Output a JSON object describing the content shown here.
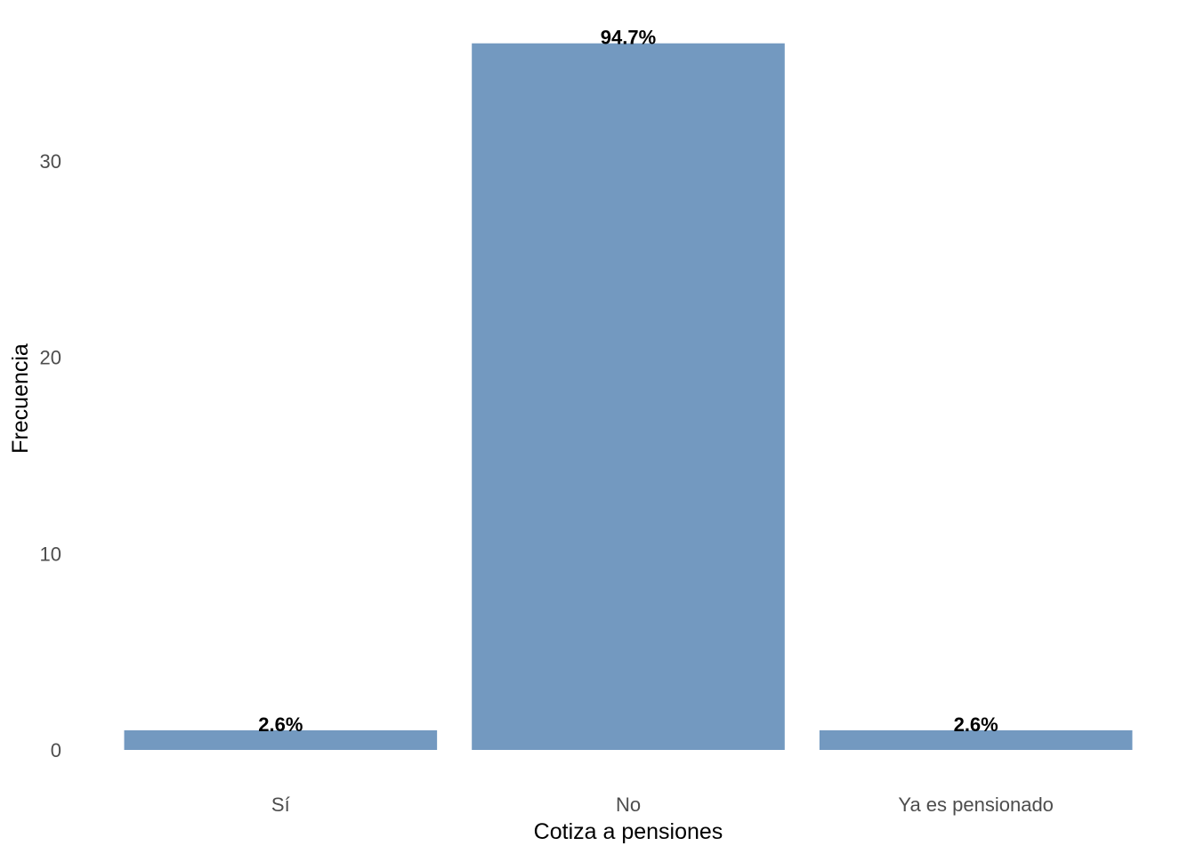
{
  "chart_data": {
    "type": "bar",
    "title": "",
    "xlabel": "Cotiza a pensiones",
    "ylabel": "Frecuencia",
    "categories": [
      "Sí",
      "No",
      "Ya es pensionado"
    ],
    "values": [
      1,
      36,
      1
    ],
    "data_labels": [
      "2.6%",
      "94.7%",
      "2.6%"
    ],
    "yticks": [
      0,
      10,
      20,
      30
    ],
    "ytick_labels": [
      "0",
      "10",
      "20",
      "30"
    ],
    "ylim": [
      0,
      37.8
    ],
    "grid": false,
    "bar_color": "#7399c0"
  }
}
